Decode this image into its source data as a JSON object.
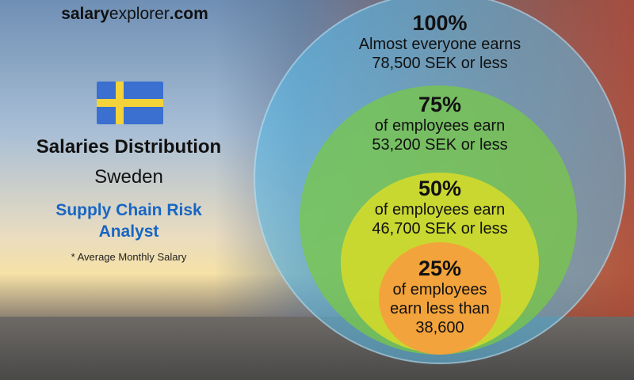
{
  "site": {
    "bold": "salary",
    "regular": "explorer",
    "suffix": ".com"
  },
  "title": "Salaries Distribution",
  "country": "Sweden",
  "job_title": "Supply Chain Risk Analyst",
  "note": "* Average Monthly Salary",
  "colors": {
    "flag_blue": "#3b6fd0",
    "flag_yellow": "#f4d23a",
    "job_title": "#1766c4",
    "circle_100": "#5abeeb",
    "circle_75": "#78c846",
    "circle_50": "#d7dc28",
    "circle_25": "#f5a03c"
  },
  "percentiles": [
    {
      "pct": "100%",
      "line1": "Almost everyone earns",
      "line2": "78,500 SEK or less"
    },
    {
      "pct": "75%",
      "line1": "of employees earn",
      "line2": "53,200 SEK or less"
    },
    {
      "pct": "50%",
      "line1": "of employees earn",
      "line2": "46,700 SEK or less"
    },
    {
      "pct": "25%",
      "line1": "of employees",
      "line2": "earn less than",
      "line3": "38,600"
    }
  ]
}
